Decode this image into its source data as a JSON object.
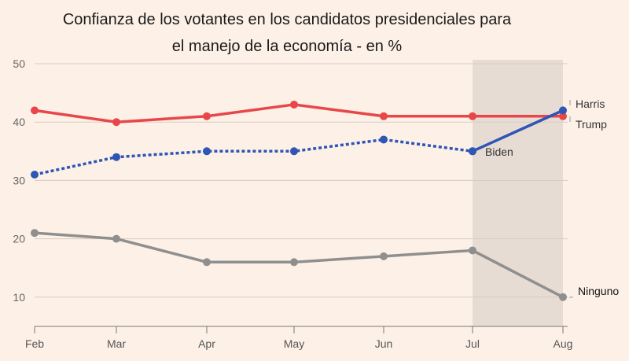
{
  "chart_data": {
    "type": "line",
    "title": "Confianza de los votantes en los candidatos presidenciales para el manejo de la economía - en %",
    "title_lines": [
      "Confianza de los votantes en los candidatos presidenciales para",
      "el manejo de la economía - en %"
    ],
    "categories": [
      "Feb",
      "Mar",
      "Apr",
      "May",
      "Jun",
      "Jul",
      "Aug"
    ],
    "ylim": [
      5,
      50
    ],
    "yticks": [
      10,
      20,
      30,
      40,
      50
    ],
    "grid": true,
    "shaded_range": [
      "Jul",
      "Aug"
    ],
    "series": [
      {
        "name": "Trump",
        "color": "#e8474a",
        "style": "solid",
        "values": [
          42,
          40,
          41,
          43,
          41,
          41,
          41
        ]
      },
      {
        "name": "Biden",
        "color": "#2f55b5",
        "style": "dotted",
        "values": [
          31,
          34,
          35,
          35,
          37,
          35,
          null
        ]
      },
      {
        "name": "Harris",
        "color": "#2f55b5",
        "style": "solid",
        "values": [
          null,
          null,
          null,
          null,
          null,
          35,
          42
        ]
      },
      {
        "name": "Ninguno",
        "color": "#8f8f8f",
        "style": "solid",
        "values": [
          21,
          20,
          16,
          16,
          17,
          18,
          10
        ]
      }
    ],
    "colors": {
      "background": "#fdf1e7",
      "shade": "#e7dcd3",
      "grid": "#d6ccc4"
    }
  }
}
